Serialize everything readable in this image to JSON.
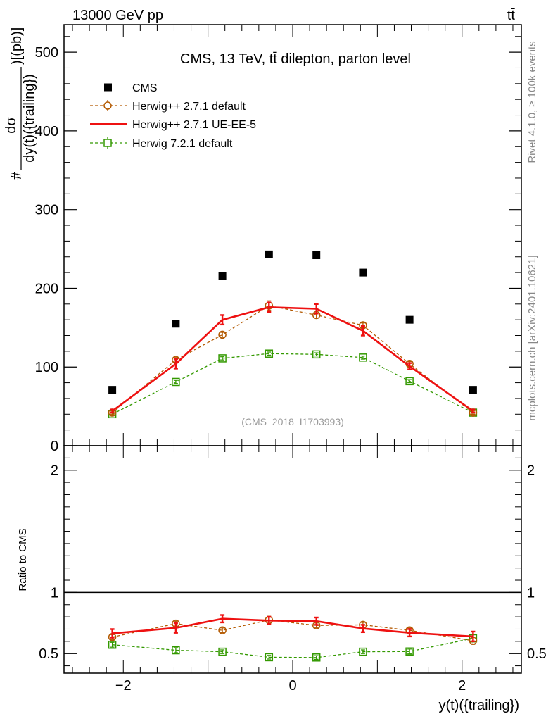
{
  "header": {
    "energy_label": "13000 GeV pp",
    "process_label": "tt̄"
  },
  "side_labels": {
    "rivet": "Rivet 4.1.0, ≥ 100k events",
    "mcplots": "mcplots.cern.ch [arXiv:2401.10621]"
  },
  "watermark": "(CMS_2018_I1703993)",
  "colors": {
    "cms": "#000000",
    "herwigpp_default": "#b35900",
    "herwigpp_ueee5": "#ee1111",
    "herwig7": "#339900"
  },
  "chart_data": [
    {
      "type": "scatter",
      "panel": "main",
      "title": "CMS, 13 TeV, tt̄ dilepton, parton level",
      "ylabel_numerator": "dσ",
      "ylabel_denominator": "dy(t)({trailing})",
      "ylabel_prefix": "#",
      "ylabel_suffix": ")[(pb)]",
      "xlim": [
        -2.7,
        2.7
      ],
      "ylim": [
        0,
        535
      ],
      "y_ticks": [
        0,
        100,
        200,
        300,
        400,
        500
      ],
      "y_tick_labels": [
        "0",
        "100",
        "200",
        "300",
        "400",
        "500"
      ],
      "legend_position": "top-left",
      "x": [
        -2.13,
        -1.38,
        -0.83,
        -0.28,
        0.28,
        0.83,
        1.38,
        2.13
      ],
      "series": [
        {
          "name": "CMS",
          "style": "square",
          "color": "#000000",
          "values": [
            71,
            155,
            216,
            243,
            242,
            220,
            160,
            71
          ],
          "errors": [
            0,
            0,
            0,
            0,
            0,
            0,
            0,
            0
          ]
        },
        {
          "name": "Herwig++ 2.7.1 default",
          "style": "circle-dashed",
          "color": "#b35900",
          "values": [
            42,
            109,
            141,
            178,
            166,
            153,
            104,
            42
          ],
          "errors": [
            2,
            3,
            3,
            6,
            4,
            3,
            3,
            2
          ]
        },
        {
          "name": "Herwig++ 2.7.1 UE-EE-5",
          "style": "solid-line",
          "color": "#ee1111",
          "values": [
            44,
            104,
            160,
            176,
            174,
            146,
            101,
            44
          ],
          "errors": [
            2,
            6,
            6,
            6,
            6,
            6,
            4,
            2
          ]
        },
        {
          "name": "Herwig 7.2.1 default",
          "style": "square-dashed",
          "color": "#339900",
          "values": [
            40,
            81,
            111,
            117,
            116,
            112,
            82,
            42
          ],
          "errors": [
            2,
            2,
            2,
            2,
            2,
            2,
            2,
            2
          ]
        }
      ]
    },
    {
      "type": "line",
      "panel": "ratio",
      "ylabel": "Ratio to CMS",
      "xlabel": "y(t)({trailing})",
      "xlim": [
        -2.7,
        2.7
      ],
      "ylim": [
        0.34,
        2.2
      ],
      "x_ticks": [
        -2,
        0,
        2
      ],
      "x_tick_labels": [
        "−2",
        "0",
        "2"
      ],
      "y_ticks": [
        0.5,
        1,
        2
      ],
      "y_tick_labels": [
        "0.5",
        "1",
        "2"
      ],
      "x": [
        -2.13,
        -1.38,
        -0.83,
        -0.28,
        0.28,
        0.83,
        1.38,
        2.13
      ],
      "series": [
        {
          "name": "Herwig++ 2.7.1 default",
          "style": "circle-dashed",
          "color": "#b35900",
          "values": [
            0.635,
            0.745,
            0.69,
            0.775,
            0.73,
            0.735,
            0.69,
            0.605
          ],
          "errors": [
            0.02,
            0.02,
            0.02,
            0.03,
            0.02,
            0.02,
            0.02,
            0.03
          ]
        },
        {
          "name": "Herwig++ 2.7.1 UE-EE-5",
          "style": "solid-line",
          "color": "#ee1111",
          "values": [
            0.665,
            0.71,
            0.785,
            0.77,
            0.765,
            0.705,
            0.67,
            0.64
          ],
          "errors": [
            0.035,
            0.04,
            0.03,
            0.03,
            0.03,
            0.03,
            0.03,
            0.04
          ]
        },
        {
          "name": "Herwig 7.2.1 default",
          "style": "square-dashed",
          "color": "#339900",
          "values": [
            0.572,
            0.527,
            0.515,
            0.47,
            0.468,
            0.515,
            0.517,
            0.625
          ],
          "errors": [
            0.02,
            0.02,
            0.015,
            0.015,
            0.015,
            0.015,
            0.02,
            0.03
          ]
        }
      ]
    }
  ]
}
